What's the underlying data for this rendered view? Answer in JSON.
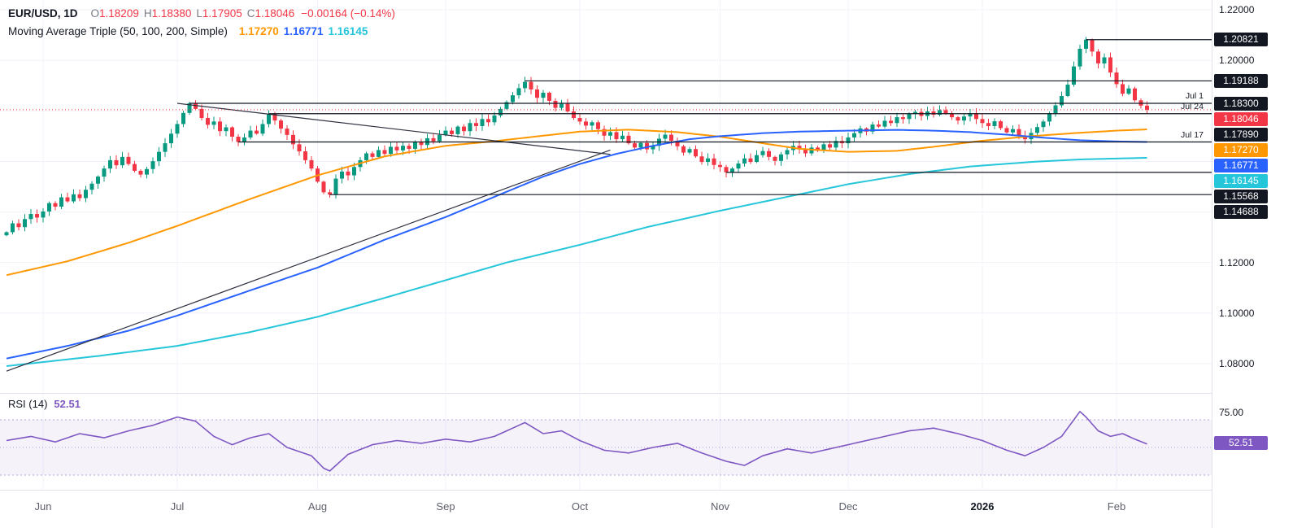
{
  "header": {
    "symbol_text": "EUR/USD, 1D",
    "o_label": "O",
    "o_value": "1.18209",
    "h_label": "H",
    "h_value": "1.18380",
    "l_label": "L",
    "l_value": "1.17905",
    "c_label": "C",
    "c_value": "1.18046",
    "change_text": "−0.00164 (−0.14%)",
    "ma_title": "Moving Average Triple (50, 100, 200, Simple)",
    "ma50_value": "1.17270",
    "ma100_value": "1.16771",
    "ma200_value": "1.16145"
  },
  "rsi": {
    "title": "RSI (14)",
    "value": "52.51"
  },
  "colors": {
    "up": "#089981",
    "down": "#f23645",
    "ma50": "#ff9800",
    "ma100": "#2962ff",
    "ma200": "#26c6da",
    "rsi": "#7e57c2",
    "level": "#131722",
    "grid": "#f0f3fa",
    "band_fill": "rgba(126,87,194,0.08)",
    "band_edge": "rgba(126,87,194,0.55)",
    "badge_dark": "#131722",
    "badge_red": "#f23645",
    "badge_orange": "#ff9800",
    "badge_blue": "#2962ff",
    "badge_cyan": "#26c6da",
    "badge_purple": "#7e57c2"
  },
  "price_axis": {
    "ticks": [
      {
        "label": "1.22000",
        "price": 1.22
      },
      {
        "label": "1.20000",
        "price": 1.2
      },
      {
        "label": "1.12000",
        "price": 1.12
      },
      {
        "label": "1.10000",
        "price": 1.1
      },
      {
        "label": "1.08000",
        "price": 1.08
      }
    ],
    "rsi_tick": {
      "label": "75.00",
      "value": 75
    },
    "badges": [
      {
        "label": "1.20821",
        "price": 1.20821,
        "bg": "badge_dark"
      },
      {
        "label": "1.19188",
        "price": 1.19188,
        "bg": "badge_dark"
      },
      {
        "label": "1.18300",
        "price": 1.183,
        "bg": "badge_dark",
        "date": "Jul 1"
      },
      {
        "label": "1.18046",
        "price": 1.18046,
        "bg": "badge_red"
      },
      {
        "label": "1.17890",
        "price": 1.1789,
        "bg": "badge_dark",
        "date": "Jul 24"
      },
      {
        "label": "1.17270",
        "price": 1.1727,
        "bg": "badge_orange"
      },
      {
        "label": "1.16771",
        "price": 1.16771,
        "bg": "badge_blue",
        "date": "Jul 17"
      },
      {
        "label": "1.16145",
        "price": 1.16145,
        "bg": "badge_cyan"
      },
      {
        "label": "1.15568",
        "price": 1.15568,
        "bg": "badge_dark"
      },
      {
        "label": "1.14688",
        "price": 1.14688,
        "bg": "badge_dark"
      }
    ],
    "rsi_badge": {
      "label": "52.51",
      "value": 52.51,
      "bg": "badge_purple"
    }
  },
  "chart_data": {
    "type": "candlestick",
    "title": "EUR/USD 1D candlestick chart with Moving Average Triple (50,100,200, Simple) overlay and RSI(14) sub-pane",
    "interval": "1D",
    "price_range": [
      1.0687,
      1.2239
    ],
    "last_candle": {
      "o": 1.18209,
      "h": 1.1838,
      "l": 1.17905,
      "c": 1.18046
    },
    "current_price": 1.18046,
    "closes": [
      1.132,
      1.1355,
      1.134,
      1.1372,
      1.1392,
      1.1378,
      1.1402,
      1.1435,
      1.1421,
      1.1458,
      1.1442,
      1.147,
      1.1455,
      1.1488,
      1.1512,
      1.154,
      1.1572,
      1.1605,
      1.1585,
      1.1618,
      1.159,
      1.1563,
      1.1548,
      1.157,
      1.1601,
      1.1638,
      1.1672,
      1.171,
      1.1748,
      1.1792,
      1.183,
      1.1808,
      1.1772,
      1.1745,
      1.1758,
      1.172,
      1.1735,
      1.1698,
      1.1677,
      1.1695,
      1.1722,
      1.171,
      1.1748,
      1.1789,
      1.1762,
      1.173,
      1.1705,
      1.1668,
      1.164,
      1.1605,
      1.1572,
      1.152,
      1.1478,
      1.1469,
      1.1532,
      1.156,
      1.1545,
      1.1578,
      1.1605,
      1.1632,
      1.1618,
      1.1645,
      1.163,
      1.1658,
      1.1644,
      1.1662,
      1.165,
      1.1678,
      1.1665,
      1.1692,
      1.168,
      1.1705,
      1.1722,
      1.1708,
      1.1738,
      1.172,
      1.1752,
      1.174,
      1.1768,
      1.1755,
      1.1782,
      1.1808,
      1.1835,
      1.1862,
      1.189,
      1.1915,
      1.1885,
      1.1852,
      1.1872,
      1.184,
      1.1812,
      1.1828,
      1.1798,
      1.1772,
      1.1758,
      1.1742,
      1.1755,
      1.1728,
      1.1702,
      1.1716,
      1.1688,
      1.1702,
      1.1672,
      1.1655,
      1.1673,
      1.1648,
      1.1662,
      1.169,
      1.1706,
      1.1682,
      1.166,
      1.1635,
      1.1649,
      1.162,
      1.1598,
      1.1612,
      1.1586,
      1.1578,
      1.1557,
      1.1572,
      1.1592,
      1.1612,
      1.1598,
      1.1625,
      1.1641,
      1.1618,
      1.1602,
      1.1628,
      1.1645,
      1.1662,
      1.1648,
      1.1632,
      1.1655,
      1.1642,
      1.1668,
      1.1655,
      1.1681,
      1.1672,
      1.1695,
      1.1712,
      1.1731,
      1.1718,
      1.1746,
      1.1738,
      1.1761,
      1.1752,
      1.1775,
      1.1768,
      1.1788,
      1.1796,
      1.178,
      1.1798,
      1.1785,
      1.1803,
      1.179,
      1.1775,
      1.1762,
      1.1778,
      1.1791,
      1.1768,
      1.1752,
      1.174,
      1.1759,
      1.1732,
      1.1715,
      1.1728,
      1.1702,
      1.1688,
      1.1713,
      1.1736,
      1.1758,
      1.1791,
      1.1822,
      1.1859,
      1.1904,
      1.1976,
      1.2046,
      1.2082,
      1.2035,
      1.1988,
      1.2012,
      1.1952,
      1.1906,
      1.1868,
      1.1889,
      1.1842,
      1.18209,
      1.18046
    ],
    "series": [
      {
        "name": "SMA 50",
        "color_key": "ma50",
        "current": 1.1727,
        "anchors": [
          [
            0,
            1.115
          ],
          [
            10,
            1.1205
          ],
          [
            20,
            1.1278
          ],
          [
            28,
            1.1345
          ],
          [
            40,
            1.1452
          ],
          [
            51,
            1.1545
          ],
          [
            62,
            1.162
          ],
          [
            72,
            1.1662
          ],
          [
            80,
            1.168
          ],
          [
            88,
            1.1702
          ],
          [
            94,
            1.1718
          ],
          [
            102,
            1.1726
          ],
          [
            110,
            1.1716
          ],
          [
            117,
            1.1698
          ],
          [
            124,
            1.1672
          ],
          [
            130,
            1.165
          ],
          [
            138,
            1.1638
          ],
          [
            146,
            1.1642
          ],
          [
            152,
            1.1658
          ],
          [
            160,
            1.1682
          ],
          [
            168,
            1.17
          ],
          [
            175,
            1.1712
          ],
          [
            182,
            1.1722
          ],
          [
            187,
            1.1727
          ]
        ]
      },
      {
        "name": "SMA 100",
        "color_key": "ma100",
        "current": 1.16771,
        "anchors": [
          [
            0,
            1.082
          ],
          [
            10,
            1.087
          ],
          [
            20,
            1.093
          ],
          [
            28,
            1.099
          ],
          [
            40,
            1.109
          ],
          [
            51,
            1.118
          ],
          [
            62,
            1.129
          ],
          [
            72,
            1.138
          ],
          [
            80,
            1.146
          ],
          [
            88,
            1.154
          ],
          [
            94,
            1.159
          ],
          [
            100,
            1.163
          ],
          [
            106,
            1.1662
          ],
          [
            112,
            1.1688
          ],
          [
            117,
            1.17
          ],
          [
            124,
            1.1712
          ],
          [
            130,
            1.1718
          ],
          [
            138,
            1.1722
          ],
          [
            146,
            1.1725
          ],
          [
            152,
            1.1722
          ],
          [
            158,
            1.1716
          ],
          [
            164,
            1.1706
          ],
          [
            170,
            1.1694
          ],
          [
            176,
            1.1684
          ],
          [
            182,
            1.1679
          ],
          [
            187,
            1.16771
          ]
        ]
      },
      {
        "name": "SMA 200",
        "color_key": "ma200",
        "current": 1.16145,
        "anchors": [
          [
            0,
            1.079
          ],
          [
            15,
            1.083
          ],
          [
            28,
            1.087
          ],
          [
            40,
            1.0925
          ],
          [
            51,
            1.0985
          ],
          [
            62,
            1.106
          ],
          [
            72,
            1.113
          ],
          [
            82,
            1.12
          ],
          [
            94,
            1.127
          ],
          [
            105,
            1.134
          ],
          [
            117,
            1.1405
          ],
          [
            128,
            1.146
          ],
          [
            138,
            1.151
          ],
          [
            148,
            1.155
          ],
          [
            158,
            1.158
          ],
          [
            168,
            1.1598
          ],
          [
            176,
            1.1608
          ],
          [
            187,
            1.16145
          ]
        ]
      }
    ],
    "levels": [
      {
        "price": 1.20821,
        "from_index": 177
      },
      {
        "price": 1.19188,
        "from_index": 85
      },
      {
        "price": 1.183,
        "from_index": 30,
        "date": "Jul 1"
      },
      {
        "price": 1.1789,
        "from_index": 43,
        "date": "Jul 24"
      },
      {
        "price": 1.16771,
        "from_index": 38,
        "date": "Jul 17"
      },
      {
        "price": 1.15568,
        "from_index": 118
      },
      {
        "price": 1.14688,
        "from_index": 53
      }
    ],
    "trendlines": [
      {
        "from": [
          28,
          1.183
        ],
        "to": [
          99,
          1.1628
        ]
      },
      {
        "from": [
          0,
          1.077
        ],
        "to": [
          99,
          1.1645
        ]
      }
    ],
    "grid_prices": [
      1.22,
      1.2,
      1.18,
      1.16,
      1.14,
      1.12,
      1.1,
      1.08
    ],
    "months": [
      {
        "text": "Jun",
        "index": 6
      },
      {
        "text": "Jul",
        "index": 28
      },
      {
        "text": "Aug",
        "index": 51
      },
      {
        "text": "Sep",
        "index": 72
      },
      {
        "text": "Oct",
        "index": 94
      },
      {
        "text": "Nov",
        "index": 117
      },
      {
        "text": "Dec",
        "index": 138
      },
      {
        "text": "2026",
        "index": 160,
        "year": true
      },
      {
        "text": "Feb",
        "index": 182
      }
    ],
    "rsi": {
      "period": 14,
      "current": 52.51,
      "bands": {
        "upper": 70,
        "middle": 50,
        "lower": 30
      },
      "axis_max_label": 75,
      "anchors": [
        [
          0,
          55
        ],
        [
          4,
          58
        ],
        [
          8,
          54
        ],
        [
          12,
          60
        ],
        [
          16,
          57
        ],
        [
          20,
          62
        ],
        [
          24,
          66
        ],
        [
          28,
          72
        ],
        [
          31,
          69
        ],
        [
          34,
          58
        ],
        [
          37,
          52
        ],
        [
          40,
          57
        ],
        [
          43,
          60
        ],
        [
          46,
          50
        ],
        [
          50,
          44
        ],
        [
          52,
          35
        ],
        [
          53,
          33
        ],
        [
          56,
          45
        ],
        [
          60,
          52
        ],
        [
          64,
          55
        ],
        [
          68,
          53
        ],
        [
          72,
          56
        ],
        [
          76,
          54
        ],
        [
          80,
          58
        ],
        [
          84,
          66
        ],
        [
          85,
          68
        ],
        [
          88,
          60
        ],
        [
          91,
          62
        ],
        [
          94,
          55
        ],
        [
          98,
          48
        ],
        [
          102,
          46
        ],
        [
          106,
          50
        ],
        [
          110,
          53
        ],
        [
          114,
          46
        ],
        [
          118,
          40
        ],
        [
          121,
          37
        ],
        [
          124,
          44
        ],
        [
          128,
          49
        ],
        [
          132,
          46
        ],
        [
          136,
          50
        ],
        [
          140,
          54
        ],
        [
          144,
          58
        ],
        [
          148,
          62
        ],
        [
          152,
          64
        ],
        [
          156,
          60
        ],
        [
          160,
          55
        ],
        [
          164,
          48
        ],
        [
          167,
          44
        ],
        [
          170,
          50
        ],
        [
          173,
          58
        ],
        [
          175,
          70
        ],
        [
          176,
          76
        ],
        [
          177,
          72
        ],
        [
          179,
          62
        ],
        [
          181,
          58
        ],
        [
          183,
          60
        ],
        [
          185,
          56
        ],
        [
          187,
          52.51
        ]
      ]
    }
  }
}
